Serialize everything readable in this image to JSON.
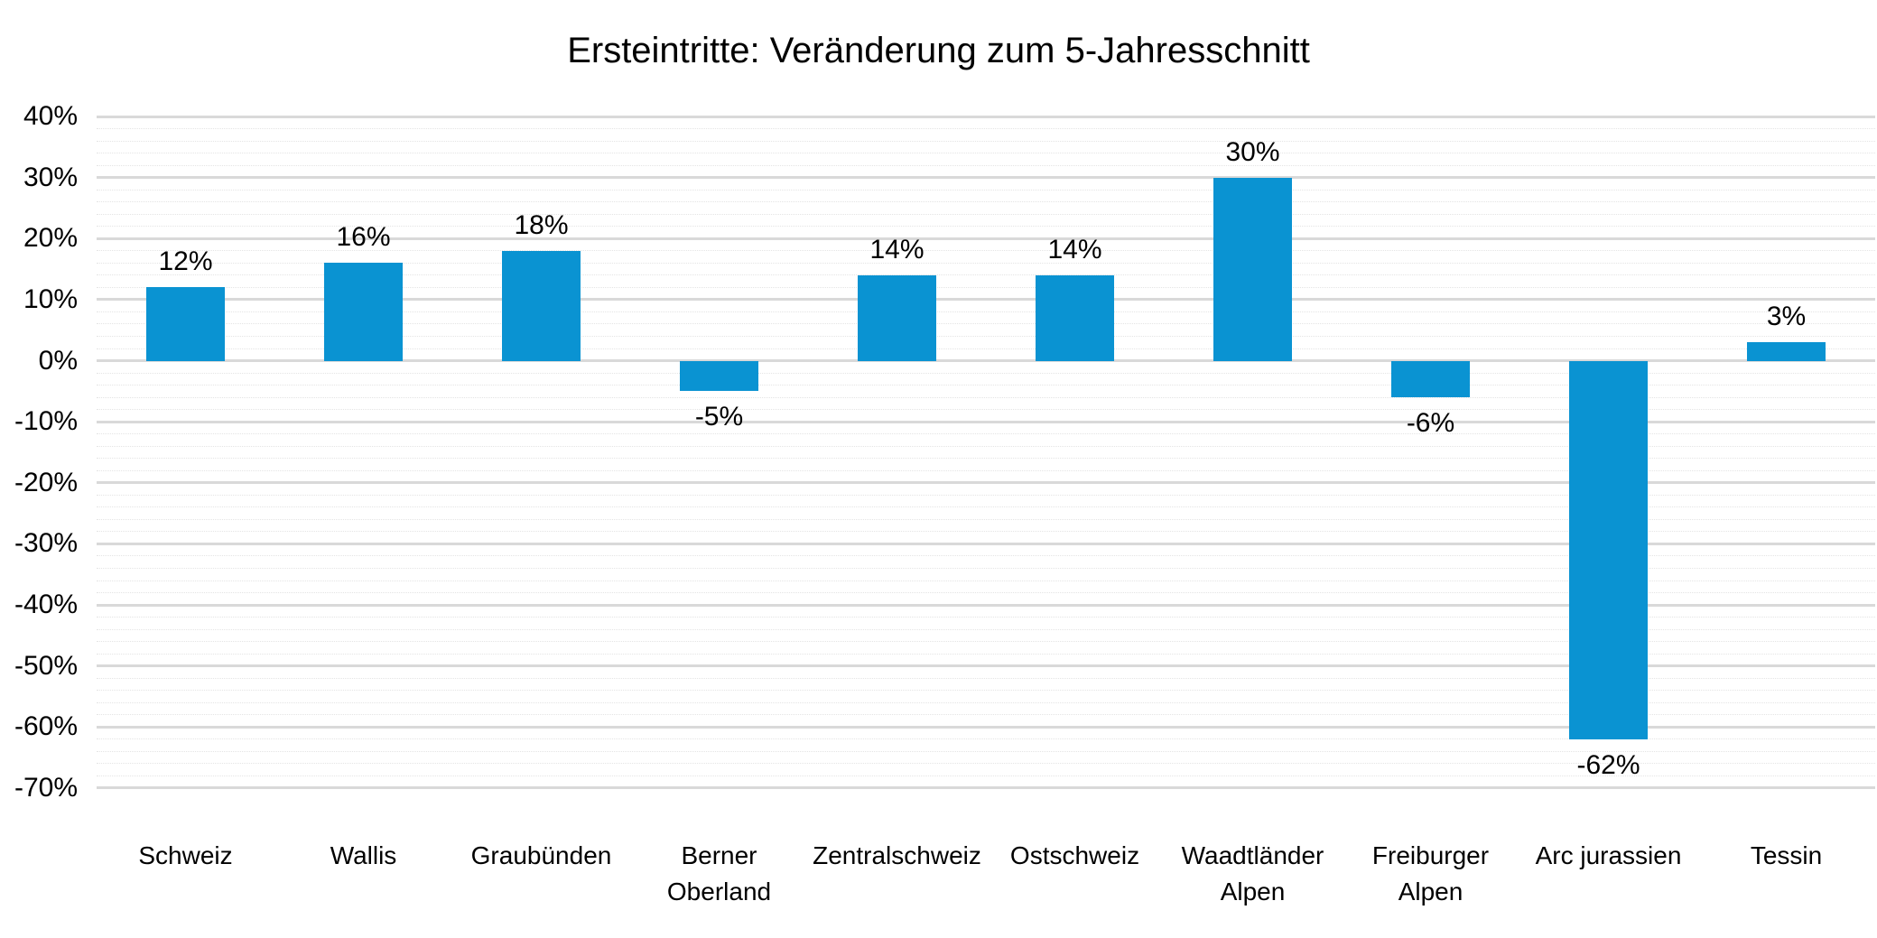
{
  "chart_data": {
    "type": "bar",
    "title": "Ersteintritte: Veränderung zum 5-Jahresschnitt",
    "categories": [
      "Schweiz",
      "Wallis",
      "Graubünden",
      "Berner\nOberland",
      "Zentralschweiz",
      "Ostschweiz",
      "Waadtländer\nAlpen",
      "Freiburger\nAlpen",
      "Arc jurassien",
      "Tessin"
    ],
    "values": [
      12,
      16,
      18,
      -5,
      14,
      14,
      30,
      -6,
      -62,
      3
    ],
    "data_labels": [
      "12%",
      "16%",
      "18%",
      "-5%",
      "14%",
      "14%",
      "30%",
      "-6%",
      "-62%",
      "3%"
    ],
    "xlabel": "",
    "ylabel": "",
    "ylim": [
      -70,
      40
    ],
    "y_major_step": 10,
    "y_minor_step": 2,
    "y_tick_labels": [
      "40%",
      "30%",
      "20%",
      "10%",
      "0%",
      "-10%",
      "-20%",
      "-30%",
      "-40%",
      "-50%",
      "-60%",
      "-70%"
    ],
    "grid": "major and minor horizontal gridlines",
    "legend_position": "none"
  },
  "colors": {
    "bar": "#0a93d2",
    "grid_major": "#d9d9d9",
    "grid_minor": "#e4e4e4",
    "text": "#000000",
    "background": "#ffffff"
  }
}
